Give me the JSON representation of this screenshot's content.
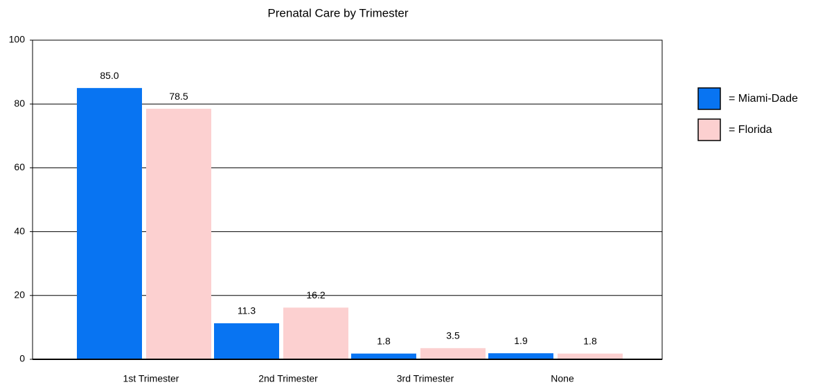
{
  "chart_data": {
    "type": "bar",
    "title": "Prenatal Care by Trimester",
    "categories": [
      "1st Trimester",
      "2nd Trimester",
      "3rd Trimester",
      "None"
    ],
    "series": [
      {
        "name": "= Miami-Dade",
        "color": "#0874f2",
        "values": [
          85,
          11.3,
          1.8,
          1.9
        ],
        "value_labels": [
          "85.0",
          "11.3",
          "1.8",
          "1.9"
        ]
      },
      {
        "name": "= Florida",
        "color": "#fcd0d0",
        "values": [
          78.5,
          16.2,
          3.5,
          1.8
        ],
        "value_labels": [
          "78.5",
          "16.2",
          "3.5",
          "1.8"
        ]
      }
    ],
    "ylim": [
      0,
      100
    ],
    "yticks": [
      0,
      20,
      40,
      60,
      80,
      100
    ],
    "grid": true,
    "legend": "right"
  }
}
